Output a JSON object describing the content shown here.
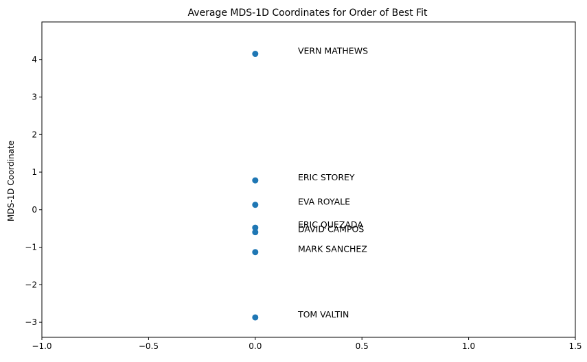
{
  "chart_data": {
    "type": "scatter",
    "title": "Average MDS-1D Coordinates for Order of Best Fit",
    "xlabel": "",
    "ylabel": "MDS-1D Coordinate",
    "xlim": [
      -1.0,
      1.5
    ],
    "ylim": [
      -3.4,
      5.0
    ],
    "x_ticks": [
      -1.0,
      -0.5,
      0.0,
      0.5,
      1.0,
      1.5
    ],
    "x_tick_labels": [
      "−1.0",
      "−0.5",
      "0.0",
      "0.5",
      "1.0",
      "1.5"
    ],
    "y_ticks": [
      -3,
      -2,
      -1,
      0,
      1,
      2,
      3,
      4
    ],
    "y_tick_labels": [
      "−3",
      "−2",
      "−1",
      "0",
      "1",
      "2",
      "3",
      "4"
    ],
    "grid": false,
    "marker_color": "#1f77b4",
    "label_offset_x": 0.2,
    "points": [
      {
        "label": "VERN MATHEWS",
        "x": 0.0,
        "y": 4.15
      },
      {
        "label": "ERIC STOREY",
        "x": 0.0,
        "y": 0.78
      },
      {
        "label": "EVA ROYALE",
        "x": 0.0,
        "y": 0.13
      },
      {
        "label": "ERIC QUEZADA",
        "x": 0.0,
        "y": -0.48
      },
      {
        "label": "DAVID CAMPOS",
        "x": 0.0,
        "y": -0.6
      },
      {
        "label": "MARK SANCHEZ",
        "x": 0.0,
        "y": -1.13
      },
      {
        "label": "TOM VALTIN",
        "x": 0.0,
        "y": -2.87
      }
    ]
  }
}
